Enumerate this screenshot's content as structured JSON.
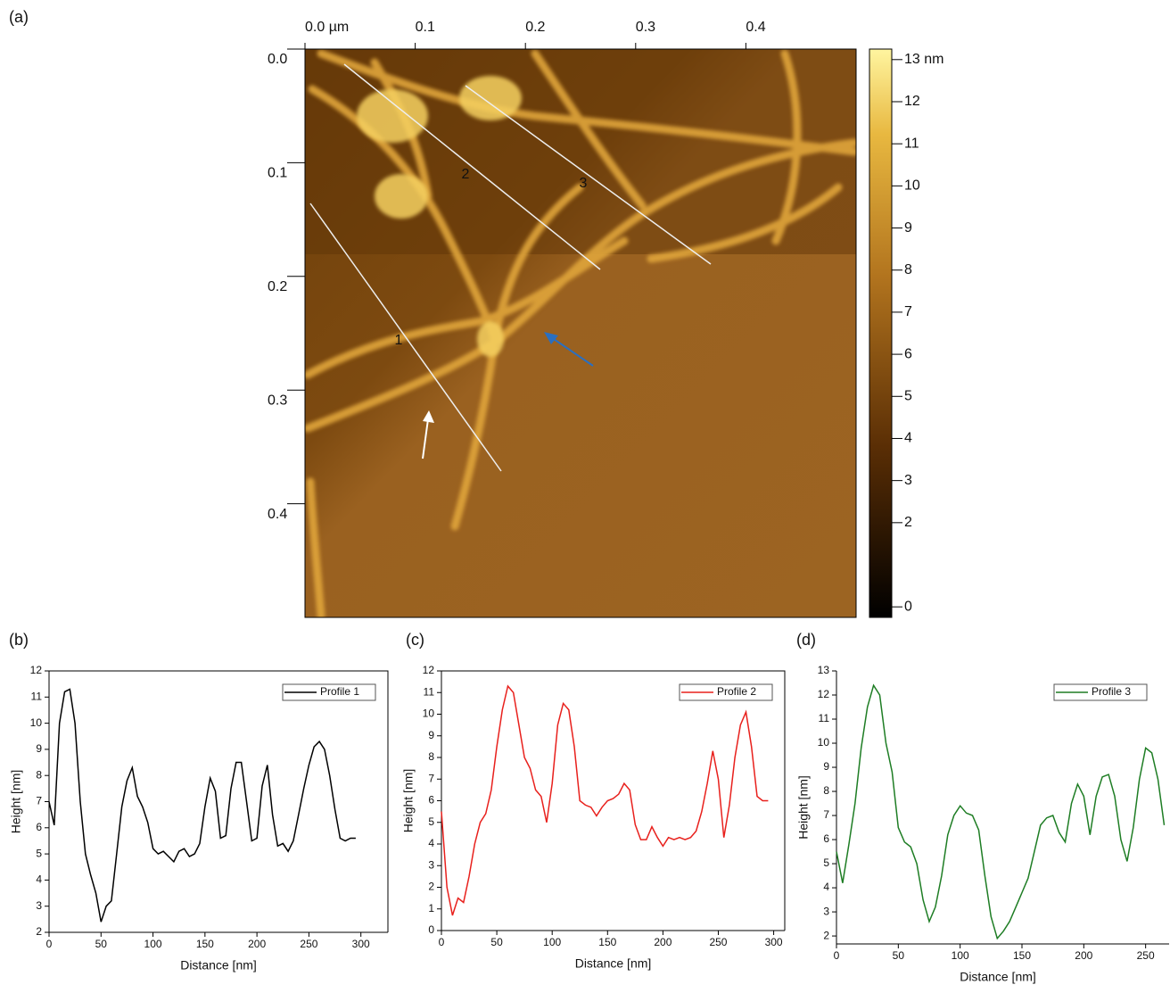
{
  "chart_data": [
    {
      "type": "image",
      "label": "(a)",
      "xlim": [
        0,
        0.5
      ],
      "xticks": [
        {
          "value": 0,
          "label": "0.0 µm"
        },
        0.1,
        0.2,
        0.3,
        0.4
      ],
      "ylim": [
        0,
        0.5
      ],
      "yticks": [
        {
          "value": 0,
          "label": "0.0"
        },
        0.1,
        0.2,
        0.3,
        0.4
      ],
      "colorbar": {
        "lim": [
          -0.25,
          13.25
        ],
        "ticks": [
          0,
          2,
          3,
          4,
          5,
          6,
          7,
          8,
          9,
          10,
          11,
          12,
          {
            "value": 13,
            "label": "13 nm"
          }
        ]
      },
      "annotations": [
        "1",
        "2",
        "3"
      ]
    },
    {
      "type": "line",
      "label": "(b)",
      "xlabel": "Distance [nm]",
      "ylabel": "Height [nm]",
      "xlim": [
        0,
        326
      ],
      "xticks": [
        0,
        50,
        100,
        150,
        200,
        250,
        300
      ],
      "ylim": [
        2,
        12
      ],
      "yticks": [
        2,
        3,
        4,
        5,
        6,
        7,
        8,
        9,
        10,
        11,
        12
      ],
      "x": [
        0,
        5,
        10,
        15,
        20,
        25,
        30,
        35,
        40,
        45,
        50,
        55,
        60,
        65,
        70,
        75,
        80,
        85,
        90,
        95,
        100,
        105,
        110,
        115,
        120,
        125,
        130,
        135,
        140,
        145,
        150,
        155,
        160,
        165,
        170,
        175,
        180,
        185,
        190,
        195,
        200,
        205,
        210,
        215,
        220,
        225,
        230,
        235,
        240,
        245,
        250,
        255,
        260,
        265,
        270,
        275,
        280,
        285,
        290,
        295
      ],
      "series": [
        {
          "name": "Profile 1",
          "color": "#000000",
          "values": [
            7.0,
            6.1,
            10.0,
            11.2,
            11.3,
            10.0,
            7.0,
            5.0,
            4.2,
            3.5,
            2.4,
            3.0,
            3.2,
            5.0,
            6.8,
            7.8,
            8.3,
            7.2,
            6.8,
            6.2,
            5.2,
            5.0,
            5.1,
            4.9,
            4.7,
            5.1,
            5.2,
            4.9,
            5.0,
            5.4,
            6.8,
            7.9,
            7.4,
            5.6,
            5.7,
            7.5,
            8.5,
            8.5,
            7.0,
            5.5,
            5.6,
            7.6,
            8.4,
            6.5,
            5.3,
            5.4,
            5.1,
            5.5,
            6.5,
            7.5,
            8.4,
            9.1,
            9.3,
            9.0,
            8.0,
            6.7,
            5.6,
            5.5,
            5.6,
            5.6
          ]
        }
      ]
    },
    {
      "type": "line",
      "label": "(c)",
      "xlabel": "Distance [nm]",
      "ylabel": "Height [nm]",
      "xlim": [
        0,
        310
      ],
      "xticks": [
        0,
        50,
        100,
        150,
        200,
        250,
        300
      ],
      "ylim": [
        0,
        12
      ],
      "yticks": [
        0,
        1,
        2,
        3,
        4,
        5,
        6,
        7,
        8,
        9,
        10,
        11,
        12
      ],
      "x": [
        0,
        5,
        10,
        15,
        20,
        25,
        30,
        35,
        40,
        45,
        50,
        55,
        60,
        65,
        70,
        75,
        80,
        85,
        90,
        95,
        100,
        105,
        110,
        115,
        120,
        125,
        130,
        135,
        140,
        145,
        150,
        155,
        160,
        165,
        170,
        175,
        180,
        185,
        190,
        195,
        200,
        205,
        210,
        215,
        220,
        225,
        230,
        235,
        240,
        245,
        250,
        255,
        260,
        265,
        270,
        275,
        280,
        285,
        290,
        295
      ],
      "series": [
        {
          "name": "Profile 2",
          "color": "#e8201c",
          "values": [
            5.5,
            2.0,
            0.7,
            1.5,
            1.3,
            2.5,
            4.0,
            5.0,
            5.4,
            6.5,
            8.5,
            10.2,
            11.3,
            11.0,
            9.5,
            8.0,
            7.5,
            6.5,
            6.2,
            5.0,
            6.8,
            9.5,
            10.5,
            10.2,
            8.5,
            6.0,
            5.8,
            5.7,
            5.3,
            5.7,
            6.0,
            6.1,
            6.3,
            6.8,
            6.5,
            4.9,
            4.2,
            4.2,
            4.8,
            4.3,
            3.9,
            4.3,
            4.2,
            4.3,
            4.2,
            4.3,
            4.6,
            5.5,
            6.8,
            8.3,
            7.0,
            4.3,
            5.8,
            8.0,
            9.5,
            10.1,
            8.5,
            6.2,
            6.0,
            6.0
          ]
        }
      ]
    },
    {
      "type": "line",
      "label": "(d)",
      "xlabel": "Distance [nm]",
      "ylabel": "Height [nm]",
      "xlim": [
        0,
        269
      ],
      "xticks": [
        0,
        50,
        100,
        150,
        200,
        250
      ],
      "ylim": [
        1.67,
        13
      ],
      "yticks": [
        2,
        3,
        4,
        5,
        6,
        7,
        8,
        9,
        10,
        11,
        12,
        13
      ],
      "x": [
        0,
        5,
        10,
        15,
        20,
        25,
        30,
        35,
        40,
        45,
        50,
        55,
        60,
        65,
        70,
        75,
        80,
        85,
        90,
        95,
        100,
        105,
        110,
        115,
        120,
        125,
        130,
        135,
        140,
        145,
        150,
        155,
        160,
        165,
        170,
        175,
        180,
        185,
        190,
        195,
        200,
        205,
        210,
        215,
        220,
        225,
        230,
        235,
        240,
        245,
        250,
        255,
        260,
        265
      ],
      "series": [
        {
          "name": "Profile 3",
          "color": "#1e7d24",
          "values": [
            5.5,
            4.2,
            5.8,
            7.5,
            9.8,
            11.5,
            12.4,
            12.0,
            10.0,
            8.8,
            6.5,
            5.9,
            5.7,
            5.0,
            3.5,
            2.6,
            3.2,
            4.5,
            6.2,
            7.0,
            7.4,
            7.1,
            7.0,
            6.4,
            4.5,
            2.8,
            1.9,
            2.2,
            2.6,
            3.2,
            3.8,
            4.4,
            5.5,
            6.6,
            6.9,
            7.0,
            6.3,
            5.9,
            7.5,
            8.3,
            7.8,
            6.2,
            7.8,
            8.6,
            8.7,
            7.8,
            6.0,
            5.1,
            6.5,
            8.5,
            9.8,
            9.6,
            8.5,
            6.6
          ]
        }
      ]
    }
  ]
}
